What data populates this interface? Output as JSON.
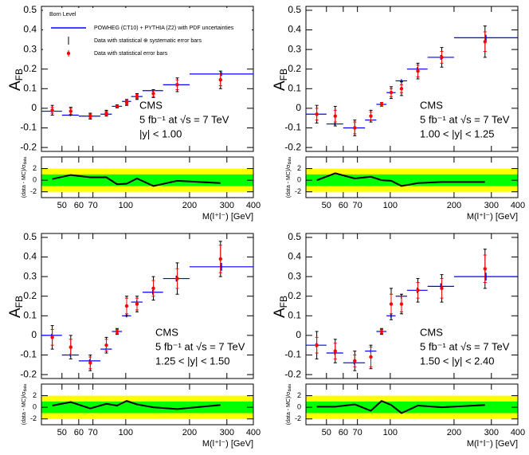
{
  "chart_data": [
    {
      "type": "errorbar",
      "xlog": true,
      "xlim": [
        40,
        400
      ],
      "xticks": [
        50,
        60,
        70,
        100,
        200,
        300,
        400
      ],
      "ylim": [
        -0.22,
        0.52
      ],
      "yticks": [
        -0.2,
        -0.1,
        0,
        0.1,
        0.2,
        0.3,
        0.4,
        0.5
      ],
      "y_label": {
        "main": "A",
        "sub": "FB"
      },
      "annotations": [
        "CMS",
        "5 fb⁻¹ at √s = 7 TeV",
        "|y| < 1.00"
      ],
      "legend_title": "Born Level",
      "bins": [
        40,
        50,
        60,
        76,
        86,
        96,
        106,
        120,
        150,
        200,
        400
      ],
      "x": [
        45,
        55,
        68,
        81,
        91,
        101,
        113,
        135,
        175,
        280
      ],
      "series": [
        {
          "name": "POWHEG (CT10) + PYTHIA (Z2) with PDF uncertainties",
          "color": "#0000ff",
          "values": [
            -0.015,
            -0.035,
            -0.04,
            -0.03,
            0.01,
            0.035,
            0.06,
            0.09,
            0.12,
            0.175
          ],
          "errors": [
            0.005,
            0.005,
            0.005,
            0.004,
            0.003,
            0.004,
            0.005,
            0.006,
            0.008,
            0.01
          ]
        },
        {
          "name": "Data with statistical ⊕ systematic error bars",
          "color": "#000000",
          "values": [
            -0.01,
            -0.015,
            -0.04,
            -0.025,
            0.01,
            0.03,
            0.06,
            0.075,
            0.12,
            0.145
          ],
          "errors": [
            0.025,
            0.02,
            0.015,
            0.015,
            0.008,
            0.015,
            0.015,
            0.02,
            0.035,
            0.045
          ]
        },
        {
          "name": "Data with statistical error bars",
          "color": "#ff0000",
          "values": [
            -0.01,
            -0.015,
            -0.04,
            -0.025,
            0.01,
            0.03,
            0.06,
            0.075,
            0.12,
            0.145
          ],
          "errors": [
            0.015,
            0.015,
            0.01,
            0.01,
            0.005,
            0.01,
            0.01,
            0.015,
            0.025,
            0.03
          ]
        }
      ]
    },
    {
      "type": "line",
      "xlog": true,
      "xlim": [
        40,
        400
      ],
      "xticks": [
        50,
        60,
        70,
        100,
        200,
        300,
        400
      ],
      "x_label": "M(l⁺l⁻) [GeV]",
      "ylim": [
        -3,
        4
      ],
      "yticks": [
        -2,
        0,
        2
      ],
      "y_label": {
        "main": "(data - MC)/σ",
        "sub": "data"
      },
      "bands": [
        {
          "value": 2,
          "color": "#ffff00"
        },
        {
          "value": 1,
          "color": "#00ff00"
        }
      ],
      "color": "#000000",
      "x": [
        45,
        55,
        68,
        81,
        91,
        101,
        113,
        135,
        175,
        280
      ],
      "values": [
        0.2,
        0.9,
        0.5,
        0.5,
        -0.7,
        -0.6,
        0.3,
        -1.0,
        -0.1,
        -0.5
      ]
    },
    {
      "type": "errorbar",
      "xlog": true,
      "xlim": [
        40,
        400
      ],
      "xticks": [
        50,
        60,
        70,
        100,
        200,
        300,
        400
      ],
      "ylim": [
        -0.22,
        0.52
      ],
      "yticks": [
        -0.2,
        -0.1,
        0,
        0.1,
        0.2,
        0.3,
        0.4,
        0.5
      ],
      "y_label": {
        "main": "A",
        "sub": "FB"
      },
      "annotations": [
        "CMS",
        "5 fb⁻¹ at √s = 7 TeV",
        "1.00 < |y| < 1.25"
      ],
      "bins": [
        40,
        50,
        60,
        76,
        86,
        96,
        106,
        120,
        150,
        200,
        400
      ],
      "x": [
        45,
        55,
        68,
        81,
        91,
        101,
        113,
        135,
        175,
        280
      ],
      "series": [
        {
          "color": "#0000ff",
          "values": [
            -0.03,
            -0.08,
            -0.1,
            -0.06,
            0.02,
            0.08,
            0.14,
            0.2,
            0.26,
            0.36
          ],
          "errors": [
            0.006,
            0.006,
            0.006,
            0.005,
            0.004,
            0.006,
            0.008,
            0.01,
            0.012,
            0.015
          ]
        },
        {
          "color": "#000000",
          "values": [
            -0.03,
            -0.04,
            -0.1,
            -0.04,
            0.02,
            0.08,
            0.1,
            0.19,
            0.26,
            0.34
          ],
          "errors": [
            0.045,
            0.05,
            0.04,
            0.03,
            0.01,
            0.03,
            0.035,
            0.04,
            0.05,
            0.08
          ]
        },
        {
          "color": "#ff0000",
          "values": [
            -0.03,
            -0.04,
            -0.1,
            -0.04,
            0.02,
            0.08,
            0.1,
            0.19,
            0.26,
            0.34
          ],
          "errors": [
            0.03,
            0.03,
            0.03,
            0.02,
            0.01,
            0.02,
            0.02,
            0.03,
            0.03,
            0.05
          ]
        }
      ]
    },
    {
      "type": "line",
      "xlog": true,
      "xlim": [
        40,
        400
      ],
      "xticks": [
        50,
        60,
        70,
        100,
        200,
        300,
        400
      ],
      "x_label": "M(l⁺l⁻) [GeV]",
      "ylim": [
        -3,
        4
      ],
      "yticks": [
        -2,
        0,
        2
      ],
      "y_label": {
        "main": "(data - MC)/σ",
        "sub": "data"
      },
      "bands": [
        {
          "value": 2,
          "color": "#ffff00"
        },
        {
          "value": 1,
          "color": "#00ff00"
        }
      ],
      "color": "#000000",
      "x": [
        45,
        55,
        68,
        81,
        91,
        101,
        113,
        135,
        175,
        280
      ],
      "values": [
        0,
        1.2,
        0.3,
        0.6,
        0,
        -0.1,
        -1.0,
        -0.5,
        -0.3,
        -0.3
      ]
    },
    {
      "type": "errorbar",
      "xlog": true,
      "xlim": [
        40,
        400
      ],
      "xticks": [
        50,
        60,
        70,
        100,
        200,
        300,
        400
      ],
      "ylim": [
        -0.22,
        0.52
      ],
      "yticks": [
        -0.2,
        -0.1,
        0,
        0.1,
        0.2,
        0.3,
        0.4,
        0.5
      ],
      "y_label": {
        "main": "A",
        "sub": "FB"
      },
      "annotations": [
        "CMS",
        "5 fb⁻¹ at √s = 7 TeV",
        "1.25 < |y| < 1.50"
      ],
      "bins": [
        40,
        50,
        60,
        76,
        86,
        96,
        106,
        120,
        150,
        200,
        400
      ],
      "x": [
        45,
        55,
        68,
        81,
        91,
        101,
        113,
        135,
        175,
        280
      ],
      "series": [
        {
          "color": "#0000ff",
          "values": [
            0,
            -0.1,
            -0.13,
            -0.07,
            0.02,
            0.1,
            0.17,
            0.22,
            0.29,
            0.35
          ],
          "errors": [
            0.008,
            0.008,
            0.007,
            0.006,
            0.004,
            0.008,
            0.01,
            0.012,
            0.015,
            0.02
          ]
        },
        {
          "color": "#000000",
          "values": [
            -0.01,
            -0.06,
            -0.14,
            -0.05,
            0.02,
            0.15,
            0.16,
            0.24,
            0.29,
            0.39
          ],
          "errors": [
            0.06,
            0.06,
            0.04,
            0.04,
            0.015,
            0.05,
            0.04,
            0.06,
            0.08,
            0.09
          ]
        },
        {
          "color": "#ff0000",
          "values": [
            -0.01,
            -0.06,
            -0.14,
            -0.05,
            0.02,
            0.15,
            0.16,
            0.24,
            0.29,
            0.39
          ],
          "errors": [
            0.04,
            0.04,
            0.03,
            0.03,
            0.01,
            0.04,
            0.03,
            0.04,
            0.05,
            0.07
          ]
        }
      ]
    },
    {
      "type": "line",
      "xlog": true,
      "xlim": [
        40,
        400
      ],
      "xticks": [
        50,
        60,
        70,
        100,
        200,
        300,
        400
      ],
      "x_label": "M(l⁺l⁻) [GeV]",
      "ylim": [
        -3,
        4
      ],
      "yticks": [
        -2,
        0,
        2
      ],
      "y_label": {
        "main": "(data - MC)/σ",
        "sub": "data"
      },
      "bands": [
        {
          "value": 2,
          "color": "#ffff00"
        },
        {
          "value": 1,
          "color": "#00ff00"
        }
      ],
      "color": "#000000",
      "x": [
        45,
        55,
        68,
        81,
        91,
        101,
        113,
        135,
        175,
        280
      ],
      "values": [
        0.3,
        0.9,
        -0.2,
        0.6,
        0.3,
        1.1,
        0.5,
        0,
        -0.3,
        0.4
      ]
    },
    {
      "type": "errorbar",
      "xlog": true,
      "xlim": [
        40,
        400
      ],
      "xticks": [
        50,
        60,
        70,
        100,
        200,
        300,
        400
      ],
      "ylim": [
        -0.22,
        0.52
      ],
      "yticks": [
        -0.2,
        -0.1,
        0,
        0.1,
        0.2,
        0.3,
        0.4,
        0.5
      ],
      "y_label": {
        "main": "A",
        "sub": "FB"
      },
      "annotations": [
        "CMS",
        "5 fb⁻¹ at √s = 7 TeV",
        "1.50 < |y| < 2.40"
      ],
      "bins": [
        40,
        50,
        60,
        76,
        86,
        96,
        106,
        120,
        150,
        200,
        400
      ],
      "x": [
        45,
        55,
        68,
        81,
        91,
        101,
        113,
        135,
        175,
        280
      ],
      "series": [
        {
          "color": "#0000ff",
          "values": [
            -0.05,
            -0.09,
            -0.14,
            -0.08,
            0.02,
            0.1,
            0.2,
            0.23,
            0.25,
            0.3
          ],
          "errors": [
            0.01,
            0.01,
            0.008,
            0.008,
            0.004,
            0.01,
            0.012,
            0.014,
            0.016,
            0.02
          ]
        },
        {
          "color": "#000000",
          "values": [
            -0.05,
            -0.08,
            -0.13,
            -0.11,
            0.02,
            0.16,
            0.16,
            0.23,
            0.24,
            0.34
          ],
          "errors": [
            0.07,
            0.06,
            0.05,
            0.06,
            0.015,
            0.08,
            0.05,
            0.06,
            0.07,
            0.1
          ]
        },
        {
          "color": "#ff0000",
          "values": [
            -0.05,
            -0.08,
            -0.13,
            -0.11,
            0.02,
            0.16,
            0.16,
            0.23,
            0.24,
            0.34
          ],
          "errors": [
            0.04,
            0.04,
            0.03,
            0.05,
            0.01,
            0.05,
            0.04,
            0.04,
            0.05,
            0.07
          ]
        }
      ]
    },
    {
      "type": "line",
      "xlog": true,
      "xlim": [
        40,
        400
      ],
      "xticks": [
        50,
        60,
        70,
        100,
        200,
        300,
        400
      ],
      "x_label": "M(l⁺l⁻) [GeV]",
      "ylim": [
        -3,
        4
      ],
      "yticks": [
        -2,
        0,
        2
      ],
      "y_label": {
        "main": "(data - MC)/σ",
        "sub": "data"
      },
      "bands": [
        {
          "value": 2,
          "color": "#ffff00"
        },
        {
          "value": 1,
          "color": "#00ff00"
        }
      ],
      "color": "#000000",
      "x": [
        45,
        55,
        68,
        81,
        91,
        101,
        113,
        135,
        175,
        280
      ],
      "values": [
        0.1,
        0.1,
        0.5,
        -0.6,
        1.1,
        0.4,
        -1.0,
        0.3,
        0,
        0.4
      ]
    }
  ]
}
